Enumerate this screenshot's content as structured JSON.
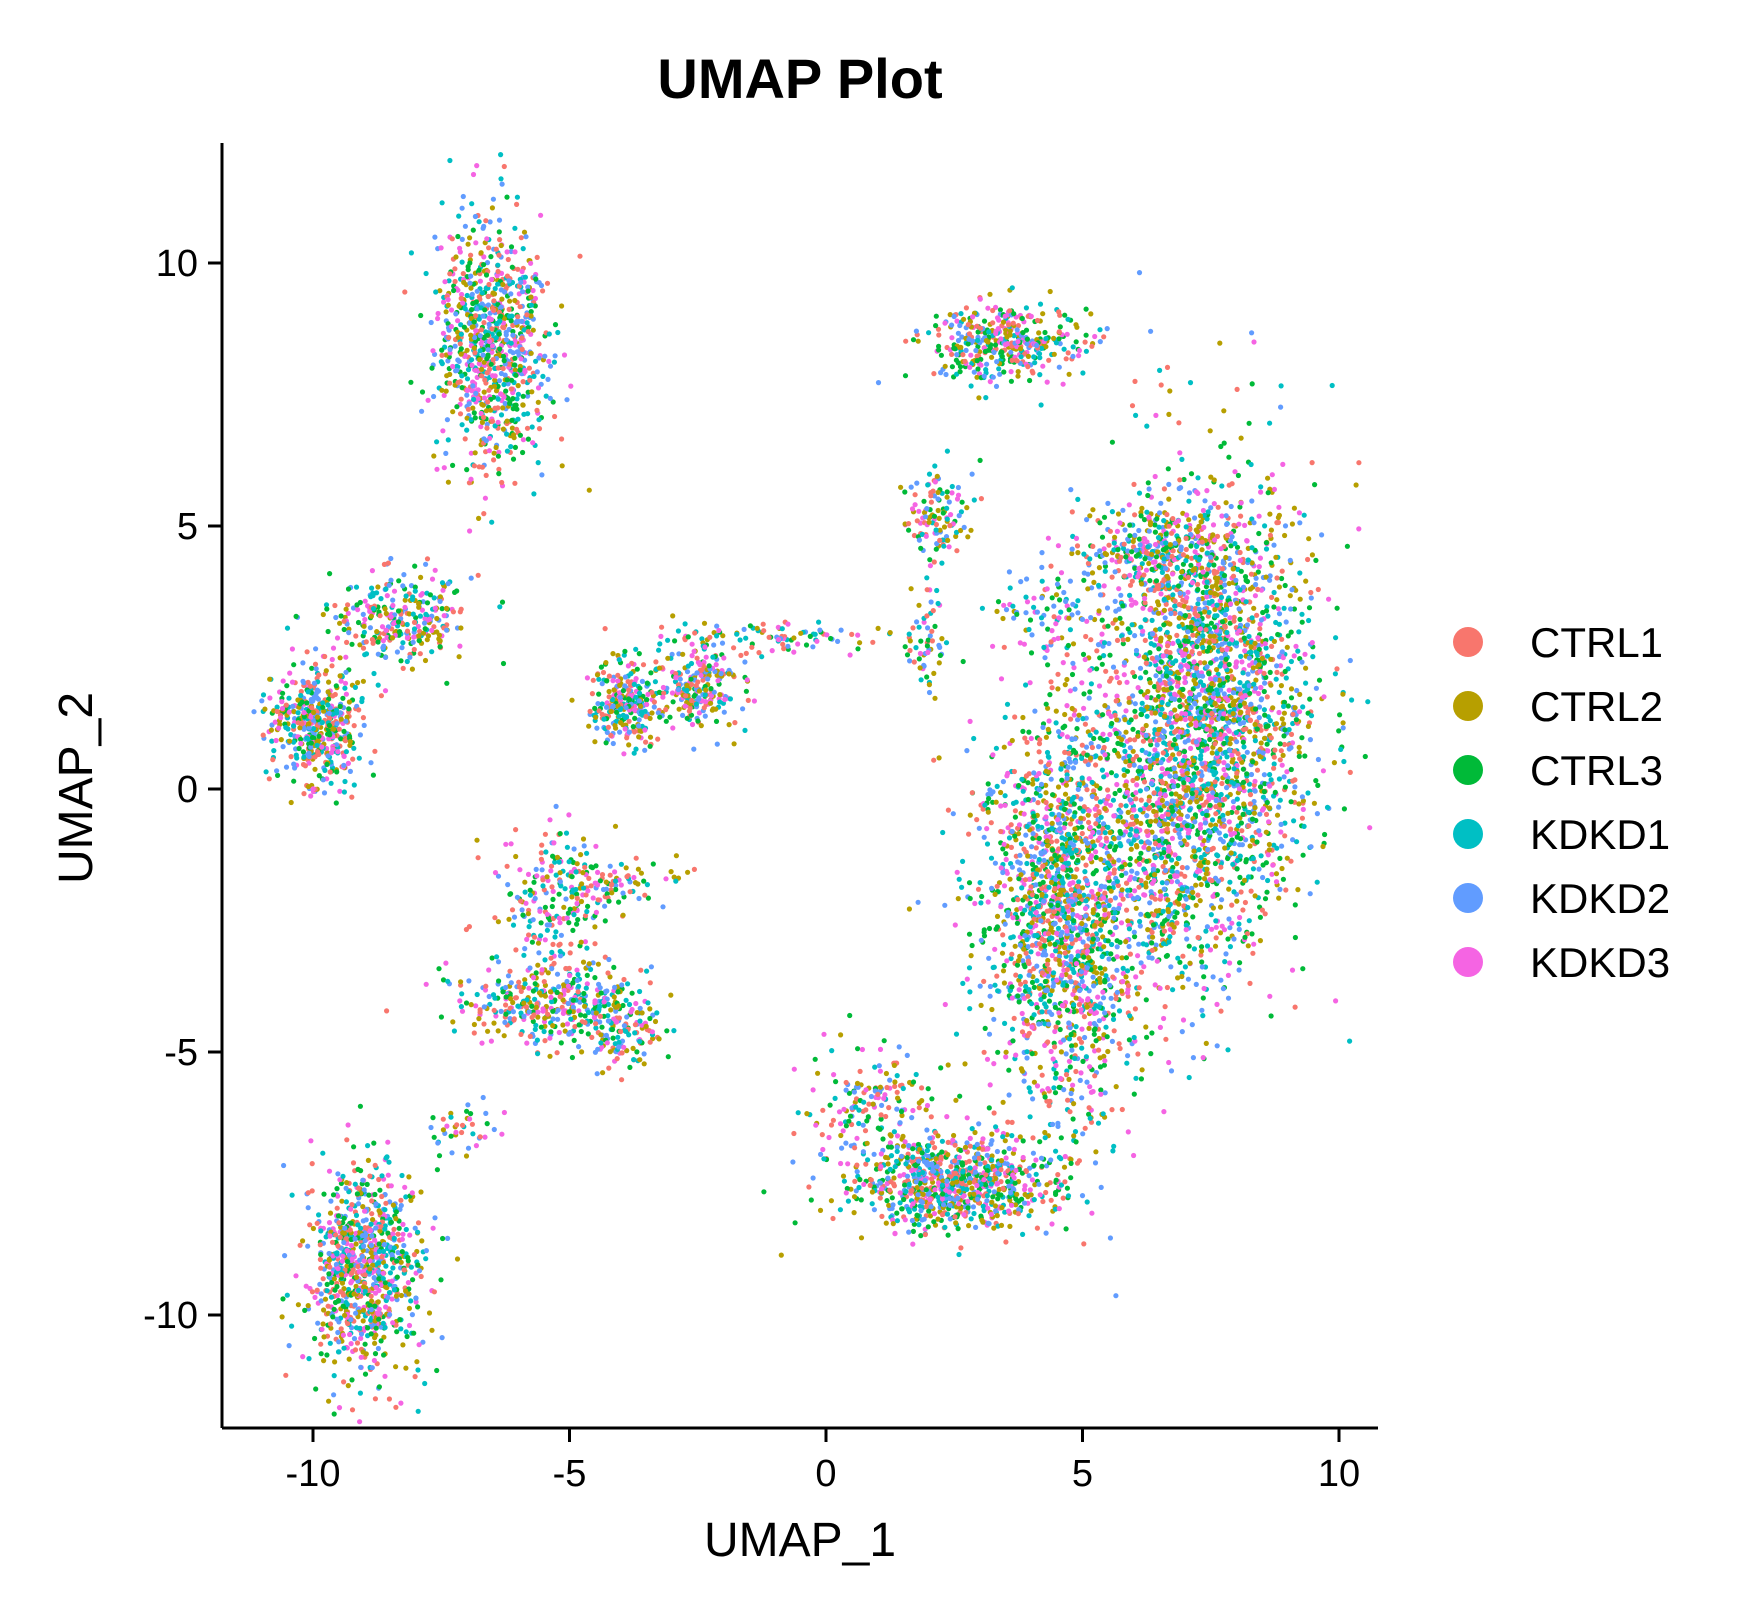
{
  "chart_data": {
    "type": "scatter",
    "title": "UMAP Plot",
    "xlabel": "UMAP_1",
    "ylabel": "UMAP_2",
    "xlim": [
      -11.8,
      10.7
    ],
    "ylim": [
      -12.2,
      12.2
    ],
    "xticks": [
      -10,
      -5,
      0,
      5,
      10
    ],
    "yticks": [
      -10,
      -5,
      0,
      5,
      10
    ],
    "xtick_labels": [
      "-10",
      "-5",
      "0",
      "5",
      "10"
    ],
    "ytick_labels": [
      "-10",
      "-5",
      "0",
      "5",
      "10"
    ],
    "grid": false,
    "legend_position": "right",
    "series": [
      {
        "name": "CTRL1",
        "color": "#F8766D"
      },
      {
        "name": "CTRL2",
        "color": "#B79F00"
      },
      {
        "name": "CTRL3",
        "color": "#00BA38"
      },
      {
        "name": "KDKD1",
        "color": "#00BFC4"
      },
      {
        "name": "KDKD2",
        "color": "#619CFF"
      },
      {
        "name": "KDKD3",
        "color": "#F564E3"
      }
    ],
    "clusters": [
      {
        "cx": -6.5,
        "cy": 8.5,
        "sx": 0.55,
        "sy": 1.15,
        "n": 900
      },
      {
        "cx": -9.9,
        "cy": 1.2,
        "sx": 0.45,
        "sy": 0.55,
        "n": 500
      },
      {
        "cx": -8.3,
        "cy": 3.2,
        "sx": 0.7,
        "sy": 0.45,
        "n": 300
      },
      {
        "cx": -3.9,
        "cy": 1.6,
        "sx": 0.35,
        "sy": 0.4,
        "n": 260
      },
      {
        "cx": -2.5,
        "cy": 2.0,
        "sx": 0.45,
        "sy": 0.45,
        "n": 260
      },
      {
        "cx": -0.8,
        "cy": 2.9,
        "sx": 0.9,
        "sy": 0.15,
        "n": 80
      },
      {
        "cx": -5.3,
        "cy": -2.3,
        "sx": 0.5,
        "sy": 0.8,
        "n": 200
      },
      {
        "cx": -4.3,
        "cy": -1.8,
        "sx": 0.7,
        "sy": 0.25,
        "n": 100
      },
      {
        "cx": -5.4,
        "cy": -4.1,
        "sx": 0.9,
        "sy": 0.4,
        "n": 350
      },
      {
        "cx": -4.0,
        "cy": -4.6,
        "sx": 0.4,
        "sy": 0.4,
        "n": 140
      },
      {
        "cx": -9.0,
        "cy": -9.1,
        "sx": 0.55,
        "sy": 1.0,
        "n": 900
      },
      {
        "cx": -7.2,
        "cy": -6.5,
        "sx": 0.4,
        "sy": 0.25,
        "n": 40
      },
      {
        "cx": 3.5,
        "cy": 8.5,
        "sx": 0.7,
        "sy": 0.35,
        "n": 400
      },
      {
        "cx": 2.2,
        "cy": 5.2,
        "sx": 0.3,
        "sy": 0.45,
        "n": 120
      },
      {
        "cx": 2.0,
        "cy": 2.8,
        "sx": 0.2,
        "sy": 0.6,
        "n": 60
      },
      {
        "cx": 4.3,
        "cy": 3.4,
        "sx": 0.5,
        "sy": 0.4,
        "n": 80
      },
      {
        "cx": 7.5,
        "cy": 1.5,
        "sx": 1.0,
        "sy": 2.2,
        "n": 2600
      },
      {
        "cx": 4.6,
        "cy": -2.3,
        "sx": 0.8,
        "sy": 2.0,
        "n": 1800
      },
      {
        "cx": 2.5,
        "cy": -7.5,
        "sx": 1.0,
        "sy": 0.45,
        "n": 900
      },
      {
        "cx": 0.9,
        "cy": -5.9,
        "sx": 0.6,
        "sy": 0.55,
        "n": 160
      },
      {
        "cx": 6.5,
        "cy": 4.5,
        "sx": 0.8,
        "sy": 0.5,
        "n": 300
      },
      {
        "cx": 6.5,
        "cy": -1.5,
        "sx": 0.5,
        "sy": 1.2,
        "n": 250
      }
    ],
    "point_count_approx": 11000
  }
}
